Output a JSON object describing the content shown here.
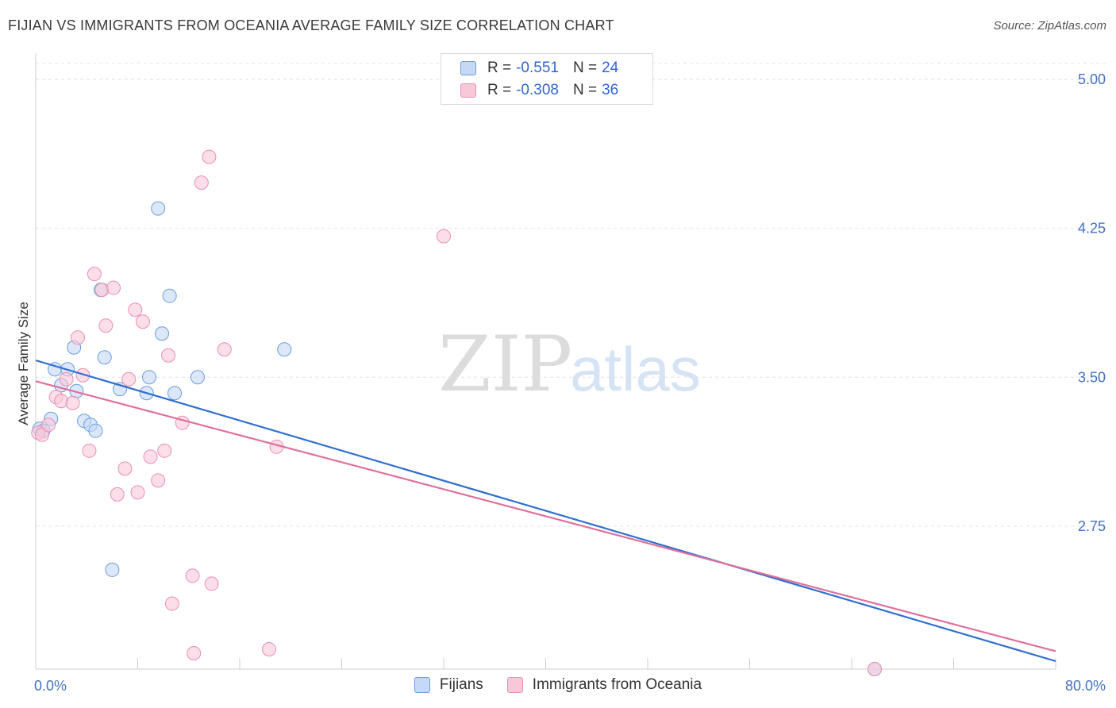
{
  "header": {
    "title": "FIJIAN VS IMMIGRANTS FROM OCEANIA AVERAGE FAMILY SIZE CORRELATION CHART",
    "source": "Source: ZipAtlas.com"
  },
  "watermark": {
    "zip": "ZIP",
    "atlas": "atlas"
  },
  "legend": {
    "rows": [
      {
        "r_label": "R =",
        "r_value": "-0.551",
        "n_label": "N =",
        "n_value": "24"
      },
      {
        "r_label": "R =",
        "r_value": "-0.308",
        "n_label": "N =",
        "n_value": "36"
      }
    ]
  },
  "bottom_legend": {
    "items": [
      {
        "label": "Fijians"
      },
      {
        "label": "Immigrants from Oceania"
      }
    ]
  },
  "chart_data": {
    "type": "scatter",
    "title": "FIJIAN VS IMMIGRANTS FROM OCEANIA AVERAGE FAMILY SIZE CORRELATION CHART",
    "ylabel": "Average Family Size",
    "xlabel": "",
    "xlim": [
      0,
      80
    ],
    "ylim": [
      2.03,
      5.08
    ],
    "y_ticks": [
      2.75,
      3.5,
      4.25,
      5.0
    ],
    "y_tick_labels": [
      "2.75",
      "3.50",
      "4.25",
      "5.00"
    ],
    "x_tick_labels": [
      "0.0%",
      "80.0%"
    ],
    "x_tick_label_values": [
      0,
      80
    ],
    "x_minor_ticks": [
      0,
      8,
      16,
      24,
      32,
      40,
      48,
      56,
      64,
      72,
      80
    ],
    "grid": true,
    "legend_placement": "top-center",
    "series": [
      {
        "name": "Fijians",
        "color": "#6a9ee0",
        "fill": "#c5d9f5",
        "line_color": "#2f6fd1",
        "r": "-0.551",
        "n": "24",
        "trend": [
          [
            0,
            3.585
          ],
          [
            80,
            2.07
          ]
        ],
        "points": [
          [
            0.3,
            3.24
          ],
          [
            0.6,
            3.23
          ],
          [
            1.2,
            3.29
          ],
          [
            1.5,
            3.54
          ],
          [
            2.0,
            3.46
          ],
          [
            2.5,
            3.54
          ],
          [
            3.0,
            3.65
          ],
          [
            3.2,
            3.43
          ],
          [
            3.8,
            3.28
          ],
          [
            4.3,
            3.26
          ],
          [
            4.7,
            3.23
          ],
          [
            5.1,
            3.94
          ],
          [
            5.4,
            3.6
          ],
          [
            6.0,
            2.53
          ],
          [
            6.6,
            3.44
          ],
          [
            8.7,
            3.42
          ],
          [
            8.9,
            3.5
          ],
          [
            9.6,
            4.35
          ],
          [
            9.9,
            3.72
          ],
          [
            10.5,
            3.91
          ],
          [
            10.9,
            3.42
          ],
          [
            12.7,
            3.5
          ],
          [
            19.5,
            3.64
          ],
          [
            65.8,
            2.03
          ]
        ]
      },
      {
        "name": "Immigrants from Oceania",
        "color": "#ec8fb0",
        "fill": "#f8c8d9",
        "line_color": "#e0709a",
        "r": "-0.308",
        "n": "36",
        "trend": [
          [
            0,
            3.48
          ],
          [
            80,
            2.12
          ]
        ],
        "points": [
          [
            0.2,
            3.22
          ],
          [
            0.5,
            3.21
          ],
          [
            1.0,
            3.26
          ],
          [
            1.6,
            3.4
          ],
          [
            2.0,
            3.38
          ],
          [
            2.4,
            3.49
          ],
          [
            2.9,
            3.37
          ],
          [
            3.3,
            3.7
          ],
          [
            3.7,
            3.51
          ],
          [
            4.2,
            3.13
          ],
          [
            4.6,
            4.02
          ],
          [
            5.2,
            3.94
          ],
          [
            5.5,
            3.76
          ],
          [
            6.1,
            3.95
          ],
          [
            6.4,
            2.91
          ],
          [
            7.0,
            3.04
          ],
          [
            7.3,
            3.49
          ],
          [
            7.8,
            3.84
          ],
          [
            8.0,
            2.92
          ],
          [
            8.4,
            3.78
          ],
          [
            9.0,
            3.1
          ],
          [
            9.6,
            2.98
          ],
          [
            10.1,
            3.13
          ],
          [
            10.4,
            3.61
          ],
          [
            10.7,
            2.36
          ],
          [
            11.5,
            3.27
          ],
          [
            12.3,
            2.5
          ],
          [
            12.4,
            2.11
          ],
          [
            13.0,
            4.48
          ],
          [
            13.6,
            4.61
          ],
          [
            13.8,
            2.46
          ],
          [
            14.8,
            3.64
          ],
          [
            18.3,
            2.13
          ],
          [
            18.9,
            3.15
          ],
          [
            32.0,
            4.21
          ],
          [
            65.8,
            2.03
          ]
        ]
      }
    ]
  }
}
